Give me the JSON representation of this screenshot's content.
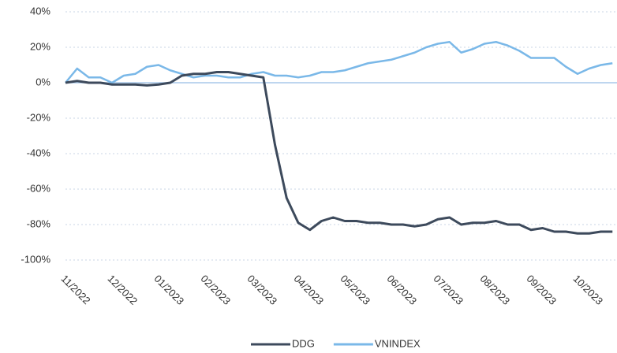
{
  "chart_data": {
    "type": "line",
    "categories": [
      "11/2022",
      null,
      null,
      null,
      "12/2022",
      null,
      null,
      null,
      "01/2023",
      null,
      null,
      null,
      "02/2023",
      null,
      null,
      null,
      "03/2023",
      null,
      null,
      null,
      "04/2023",
      null,
      null,
      null,
      "05/2023",
      null,
      null,
      null,
      "06/2023",
      null,
      null,
      null,
      "07/2023",
      null,
      null,
      null,
      "08/2023",
      null,
      null,
      null,
      "09/2023",
      null,
      null,
      null,
      "10/2023",
      null,
      null,
      null
    ],
    "series": [
      {
        "name": "DDG",
        "color": "#3d4a5c",
        "values": [
          0,
          1,
          0,
          0,
          -1,
          -1,
          -1,
          -1.5,
          -1,
          0,
          4,
          5,
          5,
          6,
          6,
          5,
          4,
          3,
          -35,
          -65,
          -79,
          -83,
          -78,
          -76,
          -78,
          -78,
          -79,
          -79,
          -80,
          -80,
          -81,
          -80,
          -77,
          -76,
          -80,
          -79,
          -79,
          -78,
          -80,
          -80,
          -83,
          -82,
          -84,
          -84,
          -85,
          -85,
          -84,
          -84
        ]
      },
      {
        "name": "VNINDEX",
        "color": "#7ab8e8",
        "values": [
          0,
          8,
          3,
          3,
          0,
          4,
          5,
          9,
          10,
          7,
          5,
          3,
          4,
          4,
          3,
          3,
          5,
          6,
          4,
          4,
          3,
          4,
          6,
          6,
          7,
          9,
          11,
          12,
          13,
          15,
          17,
          20,
          22,
          23,
          17,
          19,
          22,
          23,
          21,
          18,
          14,
          14,
          14,
          9,
          5,
          8,
          10,
          11
        ]
      }
    ],
    "ylim": [
      -100,
      40
    ],
    "yticks": [
      {
        "value": -100,
        "label": "-100%"
      },
      {
        "value": -80,
        "label": "-80%"
      },
      {
        "value": -60,
        "label": "-60%"
      },
      {
        "value": -40,
        "label": "-40%"
      },
      {
        "value": -20,
        "label": "-20%"
      },
      {
        "value": 0,
        "label": "0%"
      },
      {
        "value": 20,
        "label": "20%"
      },
      {
        "value": 40,
        "label": "40%"
      }
    ],
    "grid": true,
    "legend": "bottom"
  }
}
